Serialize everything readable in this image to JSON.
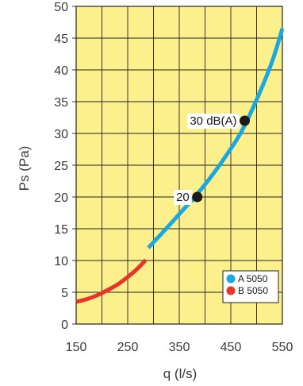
{
  "chart_data": {
    "type": "line",
    "title": "",
    "xlabel": "q (l/s)",
    "ylabel": "Ps (Pa)",
    "xlim": [
      150,
      550
    ],
    "ylim": [
      0,
      50
    ],
    "x_ticks": [
      150,
      250,
      350,
      450,
      550
    ],
    "y_ticks": [
      0,
      5,
      10,
      15,
      20,
      25,
      30,
      35,
      40,
      45,
      50
    ],
    "grid": true,
    "legend_position": "bottom-right",
    "background_color": "#fcf08c",
    "series": [
      {
        "name": "A 5050",
        "color": "#1ba8e0",
        "x": [
          290,
          320,
          350,
          380,
          410,
          440,
          470,
          500,
          530,
          550
        ],
        "y": [
          12,
          14.6,
          17.3,
          20,
          23,
          26.4,
          30.2,
          35.3,
          41.3,
          46.5
        ]
      },
      {
        "name": "B 5050",
        "color": "#e8352b",
        "x": [
          150,
          170,
          190,
          210,
          230,
          250,
          270,
          285
        ],
        "y": [
          3.5,
          3.9,
          4.5,
          5.3,
          6.2,
          7.4,
          8.8,
          10.1
        ]
      }
    ],
    "markers": [
      {
        "x": 385,
        "y": 20,
        "label": "20"
      },
      {
        "x": 477,
        "y": 32,
        "label": "30 dB(A)"
      }
    ]
  }
}
